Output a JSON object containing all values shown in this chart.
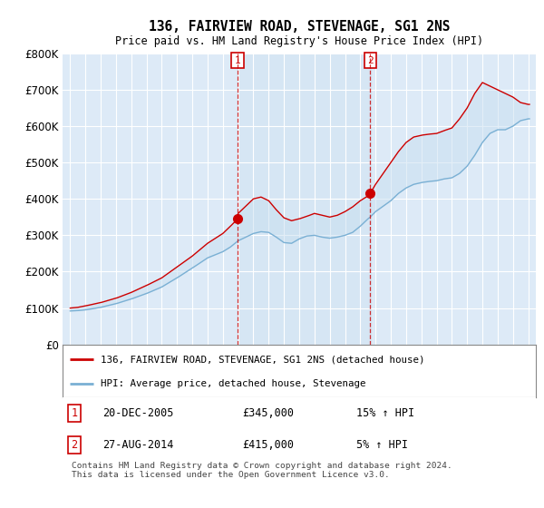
{
  "title": "136, FAIRVIEW ROAD, STEVENAGE, SG1 2NS",
  "subtitle": "Price paid vs. HM Land Registry's House Price Index (HPI)",
  "ylim": [
    0,
    800000
  ],
  "yticks": [
    0,
    100000,
    200000,
    300000,
    400000,
    500000,
    600000,
    700000,
    800000
  ],
  "ytick_labels": [
    "£0",
    "£100K",
    "£200K",
    "£300K",
    "£400K",
    "£500K",
    "£600K",
    "£700K",
    "£800K"
  ],
  "bg_color": "#ddeaf7",
  "line_color_house": "#cc0000",
  "line_color_hpi": "#7ab0d4",
  "fill_color": "#c8dff0",
  "marker1_x": 2005.97,
  "marker2_x": 2014.65,
  "marker1_price": 345000,
  "marker2_price": 415000,
  "legend_house": "136, FAIRVIEW ROAD, STEVENAGE, SG1 2NS (detached house)",
  "legend_hpi": "HPI: Average price, detached house, Stevenage",
  "table_row1": [
    "1",
    "20-DEC-2005",
    "£345,000",
    "15% ↑ HPI"
  ],
  "table_row2": [
    "2",
    "27-AUG-2014",
    "£415,000",
    "5% ↑ HPI"
  ],
  "footnote": "Contains HM Land Registry data © Crown copyright and database right 2024.\nThis data is licensed under the Open Government Licence v3.0.",
  "xlim_start": 1994.5,
  "xlim_end": 2025.5
}
